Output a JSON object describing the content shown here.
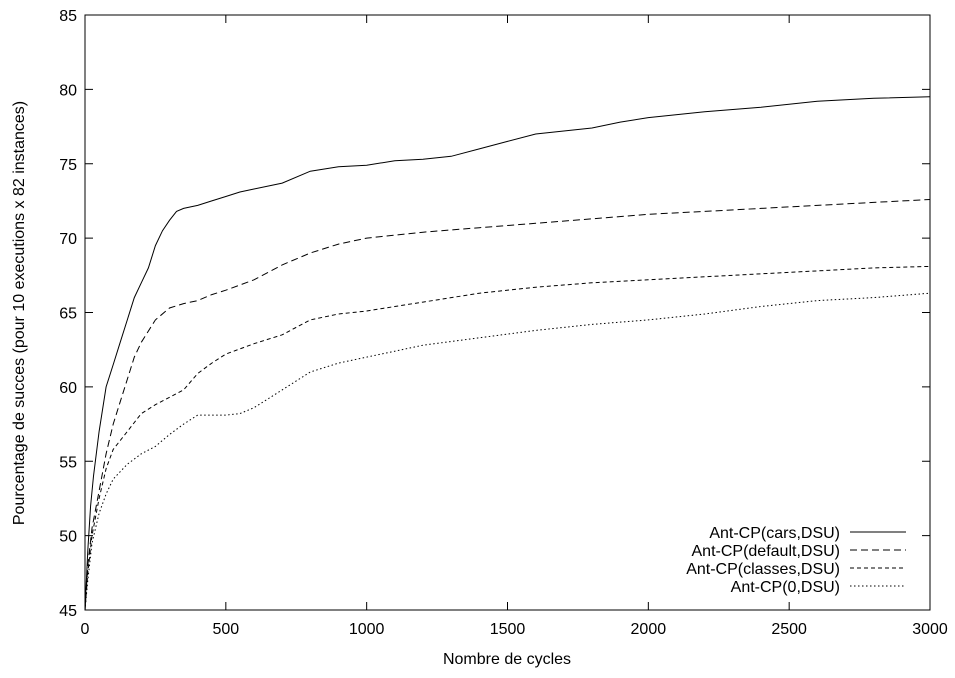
{
  "chart_data": {
    "type": "line",
    "title": "",
    "xlabel": "Nombre de cycles",
    "ylabel": "Pourcentage de succes (pour 10 executions x 82 instances)",
    "xlim": [
      0,
      3000
    ],
    "ylim": [
      45,
      85
    ],
    "xticks": [
      0,
      500,
      1000,
      1500,
      2000,
      2500,
      3000
    ],
    "yticks": [
      45,
      50,
      55,
      60,
      65,
      70,
      75,
      80,
      85
    ],
    "grid": false,
    "legend_position": "bottom-right",
    "series": [
      {
        "name": "Ant-CP(cars,DSU)",
        "dash": "solid",
        "x": [
          0,
          10,
          20,
          30,
          50,
          75,
          100,
          125,
          150,
          175,
          200,
          225,
          250,
          275,
          300,
          325,
          350,
          375,
          400,
          450,
          500,
          550,
          600,
          700,
          800,
          900,
          1000,
          1100,
          1200,
          1300,
          1400,
          1500,
          1600,
          1700,
          1800,
          1900,
          2000,
          2200,
          2400,
          2600,
          2800,
          3000
        ],
        "y": [
          45,
          49,
          52,
          54,
          57,
          60,
          61.5,
          63,
          64.5,
          66,
          67,
          68,
          69.5,
          70.5,
          71.2,
          71.8,
          72,
          72.1,
          72.2,
          72.5,
          72.8,
          73.1,
          73.3,
          73.7,
          74.5,
          74.8,
          74.9,
          75.2,
          75.3,
          75.5,
          76,
          76.5,
          77,
          77.2,
          77.4,
          77.8,
          78.1,
          78.5,
          78.8,
          79.2,
          79.4,
          79.5
        ]
      },
      {
        "name": "Ant-CP(default,DSU)",
        "dash": "dashed",
        "x": [
          0,
          10,
          25,
          50,
          75,
          100,
          125,
          150,
          175,
          200,
          250,
          300,
          350,
          400,
          450,
          500,
          600,
          700,
          800,
          900,
          1000,
          1100,
          1200,
          1400,
          1600,
          1800,
          2000,
          2200,
          2400,
          2600,
          2800,
          3000
        ],
        "y": [
          45,
          48,
          50.5,
          53,
          55.5,
          57.5,
          59,
          60.5,
          62,
          63,
          64.5,
          65.3,
          65.6,
          65.8,
          66.2,
          66.5,
          67.2,
          68.2,
          69,
          69.6,
          70,
          70.2,
          70.4,
          70.7,
          71,
          71.3,
          71.6,
          71.8,
          72,
          72.2,
          72.4,
          72.6
        ]
      },
      {
        "name": "Ant-CP(classes,DSU)",
        "dash": "shortdash",
        "x": [
          0,
          10,
          25,
          50,
          75,
          100,
          150,
          200,
          250,
          300,
          350,
          400,
          450,
          500,
          600,
          700,
          800,
          900,
          1000,
          1100,
          1200,
          1400,
          1600,
          1800,
          2000,
          2200,
          2400,
          2600,
          2800,
          3000
        ],
        "y": [
          45,
          47.5,
          50,
          52.5,
          54.5,
          55.8,
          57,
          58.2,
          58.8,
          59.3,
          59.8,
          60.9,
          61.6,
          62.2,
          62.9,
          63.5,
          64.5,
          64.9,
          65.1,
          65.4,
          65.7,
          66.3,
          66.7,
          67,
          67.2,
          67.4,
          67.6,
          67.8,
          68,
          68.1
        ]
      },
      {
        "name": "Ant-CP(0,DSU)",
        "dash": "dotted",
        "x": [
          0,
          10,
          25,
          50,
          75,
          100,
          150,
          200,
          250,
          300,
          350,
          400,
          450,
          500,
          550,
          600,
          700,
          800,
          900,
          1000,
          1100,
          1200,
          1400,
          1600,
          1800,
          2000,
          2200,
          2400,
          2600,
          2800,
          3000
        ],
        "y": [
          45,
          47,
          49.5,
          51.5,
          52.8,
          53.8,
          54.8,
          55.5,
          56,
          56.8,
          57.5,
          58.1,
          58.1,
          58.1,
          58.2,
          58.6,
          59.8,
          61,
          61.6,
          62,
          62.4,
          62.8,
          63.3,
          63.8,
          64.2,
          64.5,
          64.9,
          65.4,
          65.8,
          66,
          66.3
        ]
      }
    ]
  }
}
